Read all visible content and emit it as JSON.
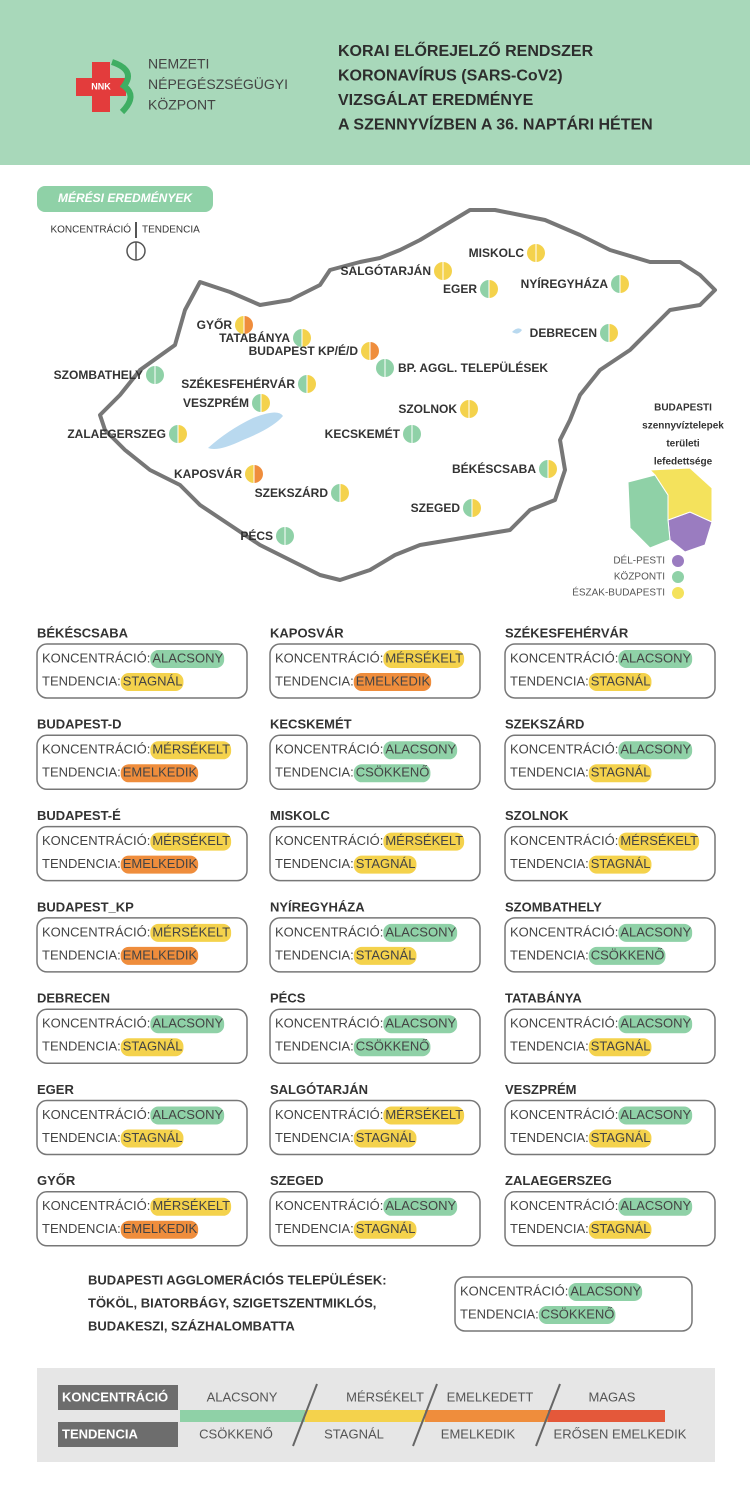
{
  "header": {
    "logo_text": "NNK",
    "org_lines": [
      "NEMZETI",
      "NÉPEGÉSZSÉGÜGYI",
      "KÖZPONT"
    ],
    "title_lines": [
      "KORAI ELŐREJELZŐ RENDSZER",
      "KORONAVÍRUS (SARS-CoV2)",
      "VIZSGÁLAT EREDMÉNYE",
      "A SZENNYVÍZBEN A 36. NAPTÁRI HÉTEN"
    ]
  },
  "map": {
    "section_label": "MÉRÉSI EREDMÉNYEK",
    "key_left": "KONCENTRÁCIÓ",
    "key_right": "TENDENCIA",
    "cities": [
      {
        "label": "MISKOLC",
        "colors": [
          "#f4d24c",
          "#f4d24c"
        ]
      },
      {
        "label": "SALGÓTARJÁN",
        "colors": [
          "#f4d24c",
          "#f4d24c"
        ]
      },
      {
        "label": "EGER",
        "colors": [
          "#8fd1a7",
          "#f4d24c"
        ]
      },
      {
        "label": "NYÍREGYHÁZA",
        "colors": [
          "#8fd1a7",
          "#f4d24c"
        ]
      },
      {
        "label": "GYŐR",
        "colors": [
          "#f4d24c",
          "#ef8d3c"
        ]
      },
      {
        "label": "TATABÁNYA",
        "colors": [
          "#8fd1a7",
          "#f4d24c"
        ]
      },
      {
        "label": "BUDAPEST KP/É/D",
        "colors": [
          "#f4d24c",
          "#ef8d3c"
        ]
      },
      {
        "label": "BP. AGGL. TELEPÜLÉSEK",
        "colors": [
          "#8fd1a7",
          "#8fd1a7"
        ]
      },
      {
        "label": "DEBRECEN",
        "colors": [
          "#8fd1a7",
          "#f4d24c"
        ]
      },
      {
        "label": "SZOMBATHELY",
        "colors": [
          "#8fd1a7",
          "#8fd1a7"
        ]
      },
      {
        "label": "SZÉKESFEHÉRVÁR",
        "colors": [
          "#8fd1a7",
          "#f4d24c"
        ]
      },
      {
        "label": "VESZPRÉM",
        "colors": [
          "#8fd1a7",
          "#f4d24c"
        ]
      },
      {
        "label": "SZOLNOK",
        "colors": [
          "#f4d24c",
          "#f4d24c"
        ]
      },
      {
        "label": "ZALAEGERSZEG",
        "colors": [
          "#8fd1a7",
          "#f4d24c"
        ]
      },
      {
        "label": "KECSKEMÉT",
        "colors": [
          "#8fd1a7",
          "#8fd1a7"
        ]
      },
      {
        "label": "BÉKÉSCSABA",
        "colors": [
          "#8fd1a7",
          "#f4d24c"
        ]
      },
      {
        "label": "KAPOSVÁR",
        "colors": [
          "#f4d24c",
          "#ef8d3c"
        ]
      },
      {
        "label": "SZEKSZÁRD",
        "colors": [
          "#8fd1a7",
          "#f4d24c"
        ]
      },
      {
        "label": "SZEGED",
        "colors": [
          "#8fd1a7",
          "#f4d24c"
        ]
      },
      {
        "label": "PÉCS",
        "colors": [
          "#8fd1a7",
          "#8fd1a7"
        ]
      }
    ],
    "budapest": {
      "title_lines": [
        "BUDAPESTI",
        "szennyvíztelepek",
        "területi",
        "lefedettsége"
      ],
      "legend": [
        {
          "label": "DÉL-PESTI",
          "color": "#9a7cc0"
        },
        {
          "label": "KÖZPONTI",
          "color": "#8fd1a7"
        },
        {
          "label": "ÉSZAK-BUDAPESTI",
          "color": "#f4e25c"
        }
      ]
    }
  },
  "labels": {
    "concentration": "KONCENTRÁCIÓ:",
    "trend": "TENDENCIA:"
  },
  "cards": [
    {
      "name": "BÉKÉSCSABA",
      "concentration": {
        "text": "ALACSONY",
        "color": "#8fd1a7"
      },
      "trend": {
        "text": "STAGNÁL",
        "color": "#f4d24c"
      }
    },
    {
      "name": "BUDAPEST-D",
      "concentration": {
        "text": "MÉRSÉKELT",
        "color": "#f4d24c"
      },
      "trend": {
        "text": "EMELKEDIK",
        "color": "#ef8d3c"
      }
    },
    {
      "name": "BUDAPEST-É",
      "concentration": {
        "text": "MÉRSÉKELT",
        "color": "#f4d24c"
      },
      "trend": {
        "text": "EMELKEDIK",
        "color": "#ef8d3c"
      }
    },
    {
      "name": "BUDAPEST_KP",
      "concentration": {
        "text": "MÉRSÉKELT",
        "color": "#f4d24c"
      },
      "trend": {
        "text": "EMELKEDIK",
        "color": "#ef8d3c"
      }
    },
    {
      "name": "DEBRECEN",
      "concentration": {
        "text": "ALACSONY",
        "color": "#8fd1a7"
      },
      "trend": {
        "text": "STAGNÁL",
        "color": "#f4d24c"
      }
    },
    {
      "name": "EGER",
      "concentration": {
        "text": "ALACSONY",
        "color": "#8fd1a7"
      },
      "trend": {
        "text": "STAGNÁL",
        "color": "#f4d24c"
      }
    },
    {
      "name": "GYŐR",
      "concentration": {
        "text": "MÉRSÉKELT",
        "color": "#f4d24c"
      },
      "trend": {
        "text": "EMELKEDIK",
        "color": "#ef8d3c"
      }
    },
    {
      "name": "KAPOSVÁR",
      "concentration": {
        "text": "MÉRSÉKELT",
        "color": "#f4d24c"
      },
      "trend": {
        "text": "EMELKEDIK",
        "color": "#ef8d3c"
      }
    },
    {
      "name": "KECSKEMÉT",
      "concentration": {
        "text": "ALACSONY",
        "color": "#8fd1a7"
      },
      "trend": {
        "text": "CSÖKKENŐ",
        "color": "#8fd1a7"
      }
    },
    {
      "name": "MISKOLC",
      "concentration": {
        "text": "MÉRSÉKELT",
        "color": "#f4d24c"
      },
      "trend": {
        "text": "STAGNÁL",
        "color": "#f4d24c"
      }
    },
    {
      "name": "NYÍREGYHÁZA",
      "concentration": {
        "text": "ALACSONY",
        "color": "#8fd1a7"
      },
      "trend": {
        "text": "STAGNÁL",
        "color": "#f4d24c"
      }
    },
    {
      "name": "PÉCS",
      "concentration": {
        "text": "ALACSONY",
        "color": "#8fd1a7"
      },
      "trend": {
        "text": "CSÖKKENŐ",
        "color": "#8fd1a7"
      }
    },
    {
      "name": "SALGÓTARJÁN",
      "concentration": {
        "text": "MÉRSÉKELT",
        "color": "#f4d24c"
      },
      "trend": {
        "text": "STAGNÁL",
        "color": "#f4d24c"
      }
    },
    {
      "name": "SZEGED",
      "concentration": {
        "text": "ALACSONY",
        "color": "#8fd1a7"
      },
      "trend": {
        "text": "STAGNÁL",
        "color": "#f4d24c"
      }
    },
    {
      "name": "SZÉKESFEHÉRVÁR",
      "concentration": {
        "text": "ALACSONY",
        "color": "#8fd1a7"
      },
      "trend": {
        "text": "STAGNÁL",
        "color": "#f4d24c"
      }
    },
    {
      "name": "SZEKSZÁRD",
      "concentration": {
        "text": "ALACSONY",
        "color": "#8fd1a7"
      },
      "trend": {
        "text": "STAGNÁL",
        "color": "#f4d24c"
      }
    },
    {
      "name": "SZOLNOK",
      "concentration": {
        "text": "MÉRSÉKELT",
        "color": "#f4d24c"
      },
      "trend": {
        "text": "STAGNÁL",
        "color": "#f4d24c"
      }
    },
    {
      "name": "SZOMBATHELY",
      "concentration": {
        "text": "ALACSONY",
        "color": "#8fd1a7"
      },
      "trend": {
        "text": "CSÖKKENŐ",
        "color": "#8fd1a7"
      }
    },
    {
      "name": "TATABÁNYA",
      "concentration": {
        "text": "ALACSONY",
        "color": "#8fd1a7"
      },
      "trend": {
        "text": "STAGNÁL",
        "color": "#f4d24c"
      }
    },
    {
      "name": "VESZPRÉM",
      "concentration": {
        "text": "ALACSONY",
        "color": "#8fd1a7"
      },
      "trend": {
        "text": "STAGNÁL",
        "color": "#f4d24c"
      }
    },
    {
      "name": "ZALAEGERSZEG",
      "concentration": {
        "text": "ALACSONY",
        "color": "#8fd1a7"
      },
      "trend": {
        "text": "STAGNÁL",
        "color": "#f4d24c"
      }
    }
  ],
  "agglomeration": {
    "lines": [
      "BUDAPESTI AGGLOMERÁCIÓS TELEPÜLÉSEK:",
      "TÖKÖL, BIATORBÁGY, SZIGETSZENTMIKLÓS,",
      "BUDAKESZI, SZÁZHALOMBATTA"
    ],
    "concentration": {
      "text": "ALACSONY",
      "color": "#8fd1a7"
    },
    "trend": {
      "text": "CSÖKKENŐ",
      "color": "#8fd1a7"
    }
  },
  "scale": {
    "concentration_label": "KONCENTRÁCIÓ",
    "trend_label": "TENDENCIA",
    "concentration_levels": [
      "ALACSONY",
      "MÉRSÉKELT",
      "EMELKEDETT",
      "MAGAS"
    ],
    "trend_levels": [
      "CSÖKKENŐ",
      "STAGNÁL",
      "EMELKEDIK",
      "ERŐSEN EMELKEDIK"
    ],
    "colors": [
      "#8fd1a7",
      "#f4d24c",
      "#ef8d3c",
      "#e4583a"
    ]
  }
}
